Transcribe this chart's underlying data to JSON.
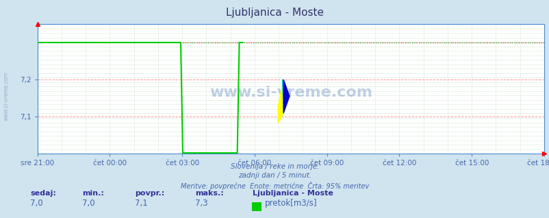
{
  "title": "Ljubljanica - Moste",
  "bg_color": "#d0e4f0",
  "plot_bg_color": "#ffffff",
  "line_color": "#00cc00",
  "dot_line_color": "#009900",
  "grid_red_color": "#ff9999",
  "grid_minor_color": "#e0e8e0",
  "axis_color": "#4488cc",
  "text_color": "#4466aa",
  "title_color": "#333366",
  "ymin": 7.0,
  "ymax": 7.35,
  "ytick_vals": [
    7.1,
    7.2
  ],
  "ytick_labels": [
    "7,1",
    "7,2"
  ],
  "x_tick_positions": [
    0,
    3,
    6,
    9,
    12,
    15,
    18,
    21
  ],
  "x_tick_labels": [
    "sre 21:00",
    "čet 00:00",
    "čet 03:00",
    "čet 06:00",
    "čet 09:00",
    "čet 12:00",
    "čet 15:00",
    "čet 18:00"
  ],
  "total_hours": 21,
  "subtitle1": "Slovenija / reke in morje.",
  "subtitle2": "zadnji dan / 5 minut.",
  "subtitle3": "Meritve: povprečne  Enote: metrične  Črta: 95% meritev",
  "legend_station": "Ljubljanica - Moste",
  "legend_label": "pretok[m3/s]",
  "stat_sedaj": "7,0",
  "stat_min": "7,0",
  "stat_povpr": "7,1",
  "stat_maks": "7,3",
  "watermark": "www.si-vreme.com",
  "solid_end_hour": 8.5,
  "drop_hour": 6.0,
  "recover_hour": 8.5,
  "drop_bottom": 7.002,
  "high_val": 7.3,
  "dot_ref_val": 7.3
}
